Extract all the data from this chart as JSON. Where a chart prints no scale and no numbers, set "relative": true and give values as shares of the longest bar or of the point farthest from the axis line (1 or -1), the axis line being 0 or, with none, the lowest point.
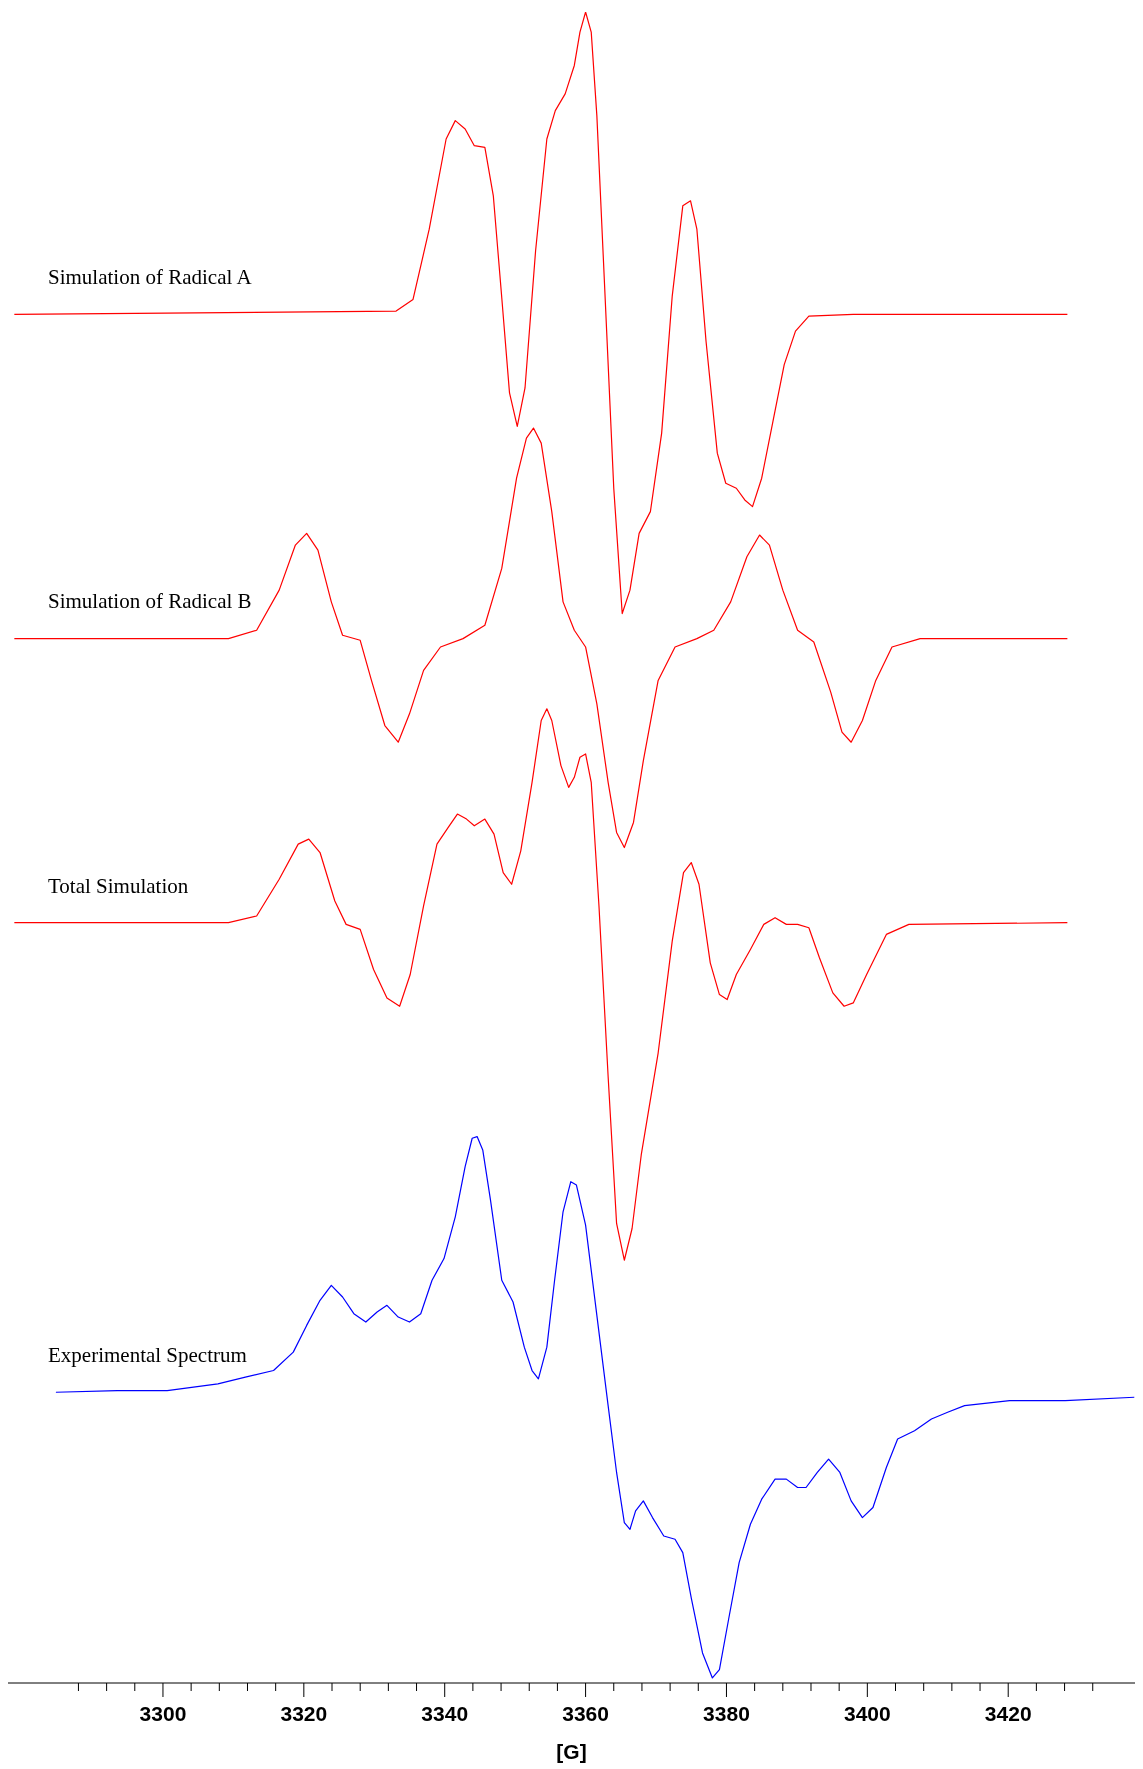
{
  "chart_data": {
    "type": "line",
    "relative": true,
    "xlabel": "[G]",
    "xlim": [
      3278,
      3438
    ],
    "xticks": [
      {
        "value": 3288,
        "label": null
      },
      {
        "value": 3292,
        "label": null
      },
      {
        "value": 3296,
        "label": null
      },
      3300,
      {
        "value": 3304,
        "label": null
      },
      {
        "value": 3308,
        "label": null
      },
      {
        "value": 3312,
        "label": null
      },
      {
        "value": 3316,
        "label": null
      },
      3320,
      {
        "value": 3324,
        "label": null
      },
      {
        "value": 3328,
        "label": null
      },
      {
        "value": 3332,
        "label": null
      },
      {
        "value": 3336,
        "label": null
      },
      3340,
      {
        "value": 3344,
        "label": null
      },
      {
        "value": 3348,
        "label": null
      },
      {
        "value": 3352,
        "label": null
      },
      {
        "value": 3356,
        "label": null
      },
      3360,
      {
        "value": 3364,
        "label": null
      },
      {
        "value": 3368,
        "label": null
      },
      {
        "value": 3372,
        "label": null
      },
      {
        "value": 3376,
        "label": null
      },
      3380,
      {
        "value": 3384,
        "label": null
      },
      {
        "value": 3388,
        "label": null
      },
      {
        "value": 3392,
        "label": null
      },
      {
        "value": 3396,
        "label": null
      },
      3400,
      {
        "value": 3404,
        "label": null
      },
      {
        "value": 3408,
        "label": null
      },
      {
        "value": 3412,
        "label": null
      },
      {
        "value": 3416,
        "label": null
      },
      3420,
      {
        "value": 3424,
        "label": null
      },
      {
        "value": 3428,
        "label": null
      },
      {
        "value": 3432,
        "label": null
      }
    ],
    "series": [
      {
        "name": "Simulation of Radical A",
        "color": "#ff0000",
        "x": [
          3278.9,
          3333.1,
          3335.5,
          3337.8,
          3340.2,
          3341.5,
          3342.9,
          3344.2,
          3345.7,
          3346.9,
          3348.1,
          3349.2,
          3350.3,
          3351.4,
          3352.9,
          3354.5,
          3355.7,
          3357.1,
          3358.4,
          3359.2,
          3360.0,
          3360.8,
          3361.6,
          3362.7,
          3364.0,
          3365.2,
          3366.3,
          3367.6,
          3369.2,
          3370.8,
          3372.3,
          3373.8,
          3374.9,
          3375.8,
          3377.1,
          3378.7,
          3379.9,
          3381.4,
          3382.6,
          3383.7,
          3385.0,
          3386.6,
          3388.2,
          3389.8,
          3391.7,
          3398.0,
          3428.4
        ],
        "values": [
          0.819,
          0.821,
          0.828,
          0.87,
          0.924,
          0.935,
          0.93,
          0.92,
          0.919,
          0.89,
          0.829,
          0.772,
          0.752,
          0.775,
          0.857,
          0.924,
          0.941,
          0.951,
          0.968,
          0.988,
          1.0,
          0.988,
          0.938,
          0.836,
          0.715,
          0.64,
          0.654,
          0.688,
          0.701,
          0.748,
          0.83,
          0.884,
          0.887,
          0.87,
          0.803,
          0.736,
          0.718,
          0.715,
          0.708,
          0.704,
          0.721,
          0.755,
          0.789,
          0.809,
          0.818,
          0.819,
          0.819
        ]
      },
      {
        "name": "Simulation of Radical B",
        "color": "#ff0000",
        "x": [
          3278.9,
          3309.3,
          3313.3,
          3316.5,
          3318.8,
          3320.4,
          3322.0,
          3323.9,
          3325.5,
          3328.0,
          3329.6,
          3331.5,
          3333.4,
          3335.0,
          3337.0,
          3339.4,
          3342.6,
          3345.7,
          3348.1,
          3350.2,
          3351.6,
          3352.6,
          3353.7,
          3355.2,
          3356.8,
          3358.4,
          3360.0,
          3361.6,
          3363.2,
          3364.4,
          3365.5,
          3366.8,
          3368.2,
          3370.3,
          3372.7,
          3375.8,
          3378.2,
          3380.6,
          3382.9,
          3384.7,
          3386.1,
          3388.0,
          3390.1,
          3392.4,
          3394.8,
          3396.4,
          3397.7,
          3399.3,
          3401.2,
          3403.5,
          3407.5,
          3428.4
        ],
        "values": [
          0.625,
          0.625,
          0.63,
          0.654,
          0.681,
          0.688,
          0.678,
          0.647,
          0.627,
          0.624,
          0.6,
          0.573,
          0.563,
          0.58,
          0.606,
          0.62,
          0.625,
          0.633,
          0.667,
          0.721,
          0.745,
          0.751,
          0.742,
          0.701,
          0.647,
          0.63,
          0.62,
          0.586,
          0.539,
          0.509,
          0.5,
          0.515,
          0.552,
          0.6,
          0.62,
          0.625,
          0.63,
          0.647,
          0.674,
          0.687,
          0.681,
          0.654,
          0.63,
          0.623,
          0.593,
          0.569,
          0.563,
          0.576,
          0.6,
          0.62,
          0.625,
          0.625
        ]
      },
      {
        "name": "Total Simulation",
        "color": "#ff0000",
        "x": [
          3278.9,
          3309.3,
          3313.3,
          3316.5,
          3319.2,
          3320.7,
          3322.3,
          3324.4,
          3326.0,
          3328.0,
          3329.9,
          3331.8,
          3333.6,
          3335.1,
          3337.0,
          3338.9,
          3340.5,
          3341.8,
          3343.1,
          3344.2,
          3345.7,
          3347.0,
          3348.3,
          3349.5,
          3350.8,
          3352.4,
          3353.7,
          3354.5,
          3355.2,
          3356.5,
          3357.6,
          3358.4,
          3359.2,
          3360.0,
          3360.8,
          3361.9,
          3363.2,
          3364.4,
          3365.5,
          3366.6,
          3367.9,
          3370.3,
          3372.3,
          3373.9,
          3375.0,
          3376.1,
          3377.7,
          3379.0,
          3380.1,
          3381.4,
          3383.4,
          3385.3,
          3386.9,
          3388.5,
          3390.1,
          3391.7,
          3393.2,
          3395.1,
          3396.7,
          3398.0,
          3399.9,
          3402.7,
          3405.9,
          3428.4
        ],
        "values": [
          0.455,
          0.455,
          0.459,
          0.481,
          0.502,
          0.505,
          0.497,
          0.468,
          0.454,
          0.451,
          0.427,
          0.41,
          0.405,
          0.424,
          0.465,
          0.502,
          0.512,
          0.52,
          0.517,
          0.513,
          0.517,
          0.508,
          0.485,
          0.478,
          0.498,
          0.539,
          0.576,
          0.583,
          0.576,
          0.549,
          0.536,
          0.542,
          0.554,
          0.556,
          0.539,
          0.465,
          0.363,
          0.275,
          0.253,
          0.272,
          0.316,
          0.377,
          0.444,
          0.485,
          0.491,
          0.478,
          0.431,
          0.412,
          0.409,
          0.424,
          0.439,
          0.454,
          0.458,
          0.454,
          0.454,
          0.452,
          0.434,
          0.413,
          0.405,
          0.407,
          0.424,
          0.448,
          0.454,
          0.455
        ]
      },
      {
        "name": "Experimental Spectrum",
        "color": "#0000ff",
        "x": [
          3284.8,
          3293.5,
          3300.6,
          3307.8,
          3311.7,
          3315.7,
          3318.5,
          3320.4,
          3322.3,
          3323.9,
          3325.5,
          3327.1,
          3328.8,
          3330.4,
          3331.8,
          3333.4,
          3335.0,
          3336.6,
          3338.2,
          3339.9,
          3341.5,
          3342.9,
          3343.9,
          3344.6,
          3345.4,
          3346.5,
          3348.1,
          3349.7,
          3351.3,
          3352.4,
          3353.3,
          3354.5,
          3355.6,
          3356.8,
          3357.9,
          3358.7,
          3360.0,
          3361.6,
          3363.2,
          3364.4,
          3365.5,
          3366.3,
          3367.1,
          3368.2,
          3369.5,
          3371.1,
          3372.7,
          3373.8,
          3375.0,
          3376.6,
          3378.0,
          3379.0,
          3380.3,
          3381.8,
          3383.4,
          3385.0,
          3386.9,
          3388.5,
          3390.1,
          3391.3,
          3392.9,
          3394.5,
          3396.1,
          3397.7,
          3399.3,
          3400.8,
          3402.7,
          3404.3,
          3406.7,
          3409.1,
          3411.4,
          3413.8,
          3420.2,
          3428.1,
          3437.9
        ],
        "values": [
          0.174,
          0.175,
          0.175,
          0.179,
          0.183,
          0.187,
          0.198,
          0.214,
          0.229,
          0.238,
          0.231,
          0.221,
          0.216,
          0.222,
          0.226,
          0.219,
          0.216,
          0.221,
          0.241,
          0.254,
          0.279,
          0.309,
          0.326,
          0.327,
          0.319,
          0.289,
          0.241,
          0.228,
          0.201,
          0.187,
          0.182,
          0.201,
          0.241,
          0.282,
          0.3,
          0.298,
          0.274,
          0.22,
          0.166,
          0.126,
          0.096,
          0.092,
          0.103,
          0.109,
          0.099,
          0.088,
          0.086,
          0.078,
          0.051,
          0.018,
          0.003,
          0.008,
          0.038,
          0.072,
          0.095,
          0.11,
          0.122,
          0.122,
          0.117,
          0.117,
          0.126,
          0.134,
          0.126,
          0.109,
          0.099,
          0.105,
          0.129,
          0.146,
          0.151,
          0.158,
          0.162,
          0.166,
          0.169,
          0.169,
          0.171
        ]
      }
    ]
  }
}
